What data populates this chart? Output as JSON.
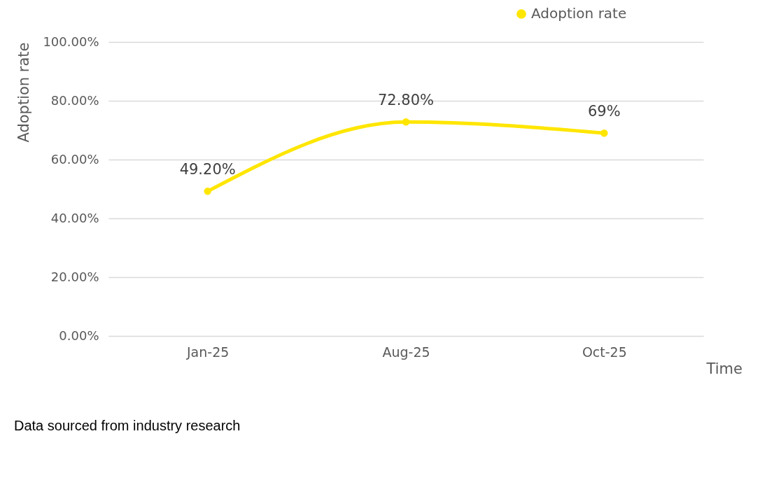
{
  "chart_data": {
    "type": "line",
    "xlabel": "Time",
    "ylabel": "Adoption rate",
    "categories": [
      "Jan-25",
      "Aug-25",
      "Oct-25"
    ],
    "series": [
      {
        "name": "Adoption rate",
        "color": "#ffe600",
        "values": [
          49.2,
          72.8,
          69
        ],
        "value_labels": [
          "49.20%",
          "72.80%",
          "69%"
        ]
      }
    ],
    "ylim": [
      0,
      100
    ],
    "yticks": [
      {
        "value": 0,
        "label": "0.00%"
      },
      {
        "value": 20,
        "label": "20.00%"
      },
      {
        "value": 40,
        "label": "40.00%"
      },
      {
        "value": 60,
        "label": "60.00%"
      },
      {
        "value": 80,
        "label": "80.00%"
      },
      {
        "value": 100,
        "label": "100.00%"
      }
    ],
    "grid": "y",
    "legend": "top right",
    "marker": "circle",
    "line_style": "solid",
    "annotations": [
      "Data sourced from industry research"
    ]
  }
}
